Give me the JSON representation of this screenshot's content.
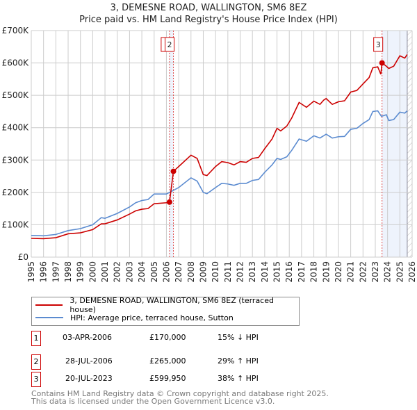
{
  "chart_data": {
    "type": "line",
    "title": "3, DEMESNE ROAD, WALLINGTON, SM6 8EZ",
    "subtitle": "Price paid vs. HM Land Registry's House Price Index (HPI)",
    "xlim": [
      1995,
      2026
    ],
    "ylim": [
      0,
      700000
    ],
    "x_ticks": [
      "1995",
      "1996",
      "1997",
      "1998",
      "1999",
      "2000",
      "2001",
      "2002",
      "2003",
      "2004",
      "2005",
      "2006",
      "2007",
      "2008",
      "2009",
      "2010",
      "2011",
      "2012",
      "2013",
      "2014",
      "2015",
      "2016",
      "2017",
      "2018",
      "2019",
      "2020",
      "2021",
      "2022",
      "2023",
      "2024",
      "2025",
      "2026"
    ],
    "y_ticks": [
      {
        "v": 0,
        "label": "£0"
      },
      {
        "v": 100000,
        "label": "£100K"
      },
      {
        "v": 200000,
        "label": "£200K"
      },
      {
        "v": 300000,
        "label": "£300K"
      },
      {
        "v": 400000,
        "label": "£400K"
      },
      {
        "v": 500000,
        "label": "£500K"
      },
      {
        "v": 600000,
        "label": "£600K"
      },
      {
        "v": 700000,
        "label": "£700K"
      }
    ],
    "grid": true,
    "series": [
      {
        "name": "3, DEMESNE ROAD, WALLINGTON, SM6 8EZ (terraced house)",
        "color": "#cc0000",
        "x": [
          1995,
          1996,
          1997,
          1998,
          1999,
          2000,
          2000.7,
          2001,
          2002,
          2003,
          2003.5,
          2004,
          2004.5,
          2005,
          2006,
          2006.25,
          2006.57,
          2007,
          2008,
          2008.5,
          2009,
          2009.3,
          2010,
          2010.5,
          2011,
          2011.5,
          2012,
          2012.5,
          2013,
          2013.5,
          2014,
          2014.6,
          2015,
          2015.3,
          2015.8,
          2016.2,
          2016.8,
          2017.4,
          2018,
          2018.5,
          2018.8,
          2019,
          2019.5,
          2020,
          2020.5,
          2021,
          2021.5,
          2022,
          2022.5,
          2022.8,
          2023.2,
          2023.45,
          2023.55,
          2023.9,
          2024.1,
          2024.5,
          2025,
          2025.4,
          2025.6
        ],
        "y": [
          58000,
          57000,
          60000,
          72000,
          75000,
          85000,
          103000,
          103000,
          115000,
          133000,
          143000,
          148000,
          150000,
          165000,
          168000,
          170000,
          265000,
          280000,
          315000,
          305000,
          255000,
          252000,
          280000,
          295000,
          292000,
          285000,
          295000,
          293000,
          305000,
          308000,
          335000,
          365000,
          398000,
          390000,
          405000,
          430000,
          478000,
          463000,
          482000,
          472000,
          485000,
          490000,
          472000,
          480000,
          483000,
          510000,
          515000,
          535000,
          555000,
          585000,
          588000,
          565000,
          599950,
          590000,
          583000,
          590000,
          622000,
          615000,
          626000
        ]
      },
      {
        "name": "HPI: Average price, terraced house, Sutton",
        "color": "#5b8bd0",
        "x": [
          1995,
          1996,
          1997,
          1998,
          1999,
          2000,
          2000.7,
          2001,
          2002,
          2003,
          2003.5,
          2004,
          2004.5,
          2005,
          2006,
          2006.5,
          2007,
          2008,
          2008.5,
          2009,
          2009.3,
          2010,
          2010.5,
          2011,
          2011.5,
          2012,
          2012.5,
          2013,
          2013.5,
          2014,
          2014.6,
          2015,
          2015.3,
          2015.8,
          2016.2,
          2016.8,
          2017.4,
          2018,
          2018.5,
          2018.8,
          2019,
          2019.5,
          2020,
          2020.5,
          2021,
          2021.5,
          2022,
          2022.5,
          2022.8,
          2023.2,
          2023.5,
          2023.9,
          2024.1,
          2024.5,
          2025,
          2025.4,
          2025.6
        ],
        "y": [
          67000,
          66000,
          70000,
          82000,
          88000,
          100000,
          122000,
          120000,
          135000,
          155000,
          168000,
          175000,
          178000,
          195000,
          195000,
          205000,
          215000,
          245000,
          235000,
          200000,
          196000,
          215000,
          228000,
          226000,
          222000,
          228000,
          228000,
          237000,
          240000,
          262000,
          285000,
          305000,
          302000,
          310000,
          330000,
          365000,
          358000,
          375000,
          368000,
          375000,
          380000,
          368000,
          372000,
          373000,
          395000,
          398000,
          413000,
          425000,
          450000,
          452000,
          435000,
          440000,
          422000,
          425000,
          448000,
          445000,
          452000
        ]
      }
    ],
    "sales": [
      {
        "id": "1",
        "x": 2006.25,
        "price": 170000,
        "date": "03-APR-2006",
        "price_label": "£170,000",
        "hpi": "15% ↓ HPI"
      },
      {
        "id": "2",
        "x": 2006.57,
        "price": 265000,
        "date": "28-JUL-2006",
        "price_label": "£265,000",
        "hpi": "29% ↑ HPI"
      },
      {
        "id": "3",
        "x": 2023.55,
        "price": 599950,
        "date": "20-JUL-2023",
        "price_label": "£599,950",
        "hpi": "38% ↑ HPI"
      }
    ],
    "forecast_shade": [
      2023.55,
      2025.6
    ],
    "hatched": [
      2025.6,
      2026
    ],
    "legend_placement": "bottom"
  },
  "footer": {
    "line1": "Contains HM Land Registry data © Crown copyright and database right 2025.",
    "line2": "This data is licensed under the Open Government Licence v3.0."
  }
}
